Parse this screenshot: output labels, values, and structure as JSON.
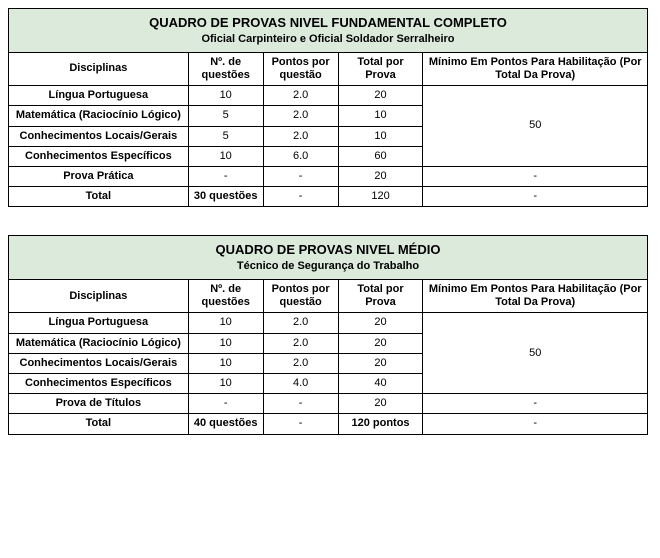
{
  "colors": {
    "header_bg": "#dceadc",
    "border": "#000000",
    "background": "#ffffff"
  },
  "tables": [
    {
      "title": "QUADRO DE PROVAS NIVEL FUNDAMENTAL COMPLETO",
      "subtitle": "Oficial Carpinteiro e Oficial Soldador Serralheiro",
      "headers": {
        "disciplinas": "Disciplinas",
        "num_questoes": "Nº. de questões",
        "pontos_questao": "Pontos por questão",
        "total_prova": "Total por Prova",
        "minimo": "Mínimo Em Pontos Para Habilitação (Por Total Da Prova)"
      },
      "rows": [
        {
          "disc": "Língua Portuguesa",
          "nq": "10",
          "pq": "2.0",
          "tp": "20"
        },
        {
          "disc": "Matemática (Raciocínio Lógico)",
          "nq": "5",
          "pq": "2.0",
          "tp": "10"
        },
        {
          "disc": "Conhecimentos Locais/Gerais",
          "nq": "5",
          "pq": "2.0",
          "tp": "10"
        },
        {
          "disc": "Conhecimentos Específicos",
          "nq": "10",
          "pq": "6.0",
          "tp": "60"
        }
      ],
      "min_group": "50",
      "extra_row": {
        "disc": "Prova Prática",
        "nq": "-",
        "pq": "-",
        "tp": "20",
        "min": "-"
      },
      "total_row": {
        "disc": "Total",
        "nq": "30 questões",
        "pq": "-",
        "tp": "120",
        "min": "-"
      }
    },
    {
      "title": "QUADRO DE PROVAS NIVEL MÉDIO",
      "subtitle": "Técnico de Segurança do Trabalho",
      "headers": {
        "disciplinas": "Disciplinas",
        "num_questoes": "Nº. de questões",
        "pontos_questao": "Pontos por questão",
        "total_prova": "Total por Prova",
        "minimo": "Mínimo Em Pontos Para Habilitação (Por Total Da Prova)"
      },
      "rows": [
        {
          "disc": "Língua Portuguesa",
          "nq": "10",
          "pq": "2.0",
          "tp": "20"
        },
        {
          "disc": "Matemática (Raciocínio Lógico)",
          "nq": "10",
          "pq": "2.0",
          "tp": "20"
        },
        {
          "disc": "Conhecimentos Locais/Gerais",
          "nq": "10",
          "pq": "2.0",
          "tp": "20"
        },
        {
          "disc": "Conhecimentos Específicos",
          "nq": "10",
          "pq": "4.0",
          "tp": "40"
        }
      ],
      "min_group": "50",
      "extra_row": {
        "disc": "Prova de Títulos",
        "nq": "-",
        "pq": "-",
        "tp": "20",
        "min": "-"
      },
      "total_row": {
        "disc": "Total",
        "nq": "40 questões",
        "pq": "-",
        "tp": "120 pontos",
        "min": "-"
      }
    }
  ]
}
